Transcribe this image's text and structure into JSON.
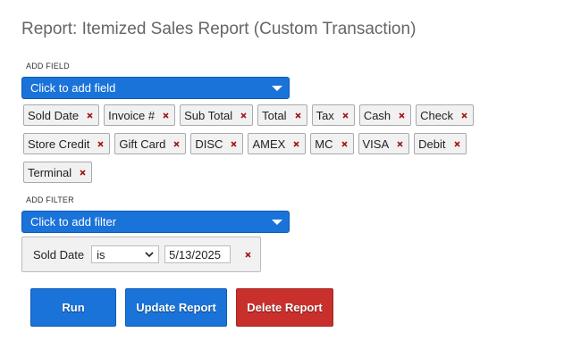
{
  "header": {
    "title": "Report: Itemized Sales Report (Custom Transaction)"
  },
  "fields": {
    "label": "ADD FIELD",
    "placeholder": "Click to add field",
    "tags": [
      "Sold Date",
      "Invoice #",
      "Sub Total",
      "Total",
      "Tax",
      "Cash",
      "Check",
      "Store Credit",
      "Gift Card",
      "DISC",
      "AMEX",
      "MC",
      "VISA",
      "Debit",
      "Terminal"
    ]
  },
  "filters": {
    "label": "ADD FILTER",
    "placeholder": "Click to add filter",
    "rows": [
      {
        "field": "Sold Date",
        "operator": "is",
        "value": "5/13/2025"
      }
    ]
  },
  "buttons": [
    "Run",
    "Update Report",
    "Delete Report"
  ]
}
